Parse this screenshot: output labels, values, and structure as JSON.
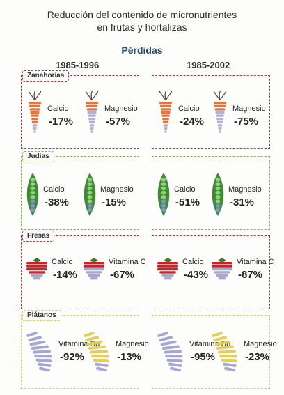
{
  "title_line1": "Reducción del contenido de micronutrientes",
  "title_line2": "en frutas y hortalizas",
  "subtitle": "Pérdidas",
  "periods": [
    "1985-1996",
    "1985-2002"
  ],
  "colors": {
    "zanahorias": "#9b2b2b",
    "judias": "#6ab04c",
    "fresas": "#8a1f1f",
    "platanos": "#d6c66a",
    "perdidas_text": "#2a4a74"
  },
  "chart_data": {
    "type": "table",
    "title": "Reducción del contenido de micronutrientes en frutas y hortalizas",
    "subtitle": "Pérdidas",
    "periods": [
      "1985-1996",
      "1985-2002"
    ],
    "categories": [
      {
        "name": "Zanahorias",
        "icon": "carrot-icon",
        "nutrients": [
          {
            "name": "Calcio",
            "values": [
              "-17%",
              "-24%"
            ]
          },
          {
            "name": "Magnesio",
            "values": [
              "-57%",
              "-75%"
            ]
          }
        ]
      },
      {
        "name": "Judias",
        "icon": "bean-pod-icon",
        "nutrients": [
          {
            "name": "Calcio",
            "values": [
              "-38%",
              "-51%"
            ]
          },
          {
            "name": "Magnesio",
            "values": [
              "-15%",
              "-31%"
            ]
          }
        ]
      },
      {
        "name": "Fresas",
        "icon": "strawberry-icon",
        "nutrients": [
          {
            "name": "Calcio",
            "values": [
              "-14%",
              "-43%"
            ]
          },
          {
            "name": "Vitamina C",
            "values": [
              "-67%",
              "-87%"
            ]
          }
        ]
      },
      {
        "name": "Plátanos",
        "icon": "banana-icon",
        "nutrients": [
          {
            "name": "Vitamina B6",
            "values": [
              "-92%",
              "-95%"
            ]
          },
          {
            "name": "Magnesio",
            "values": [
              "-13%",
              "-23%"
            ]
          }
        ]
      }
    ]
  }
}
